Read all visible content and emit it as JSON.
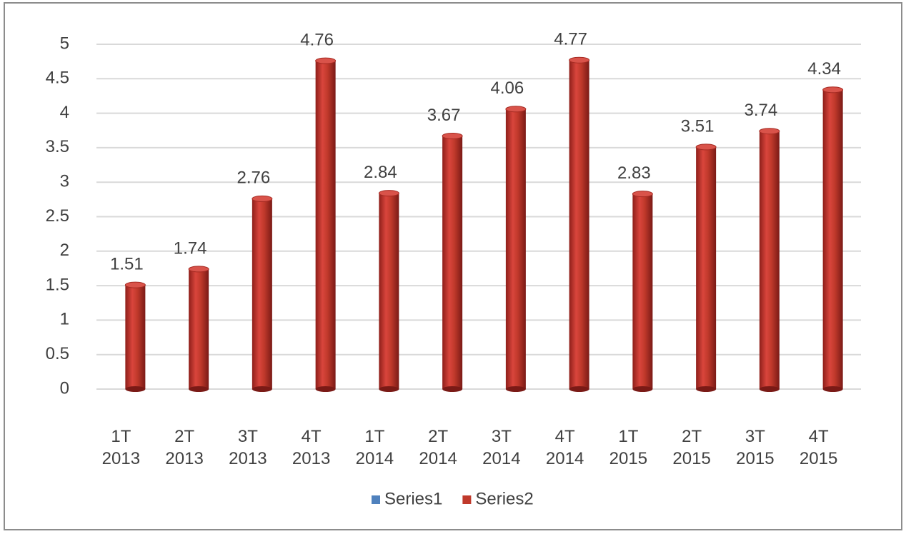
{
  "chart_data": {
    "type": "bar",
    "categories": [
      "1T 2013",
      "2T 2013",
      "3T 2013",
      "4T 2013",
      "1T 2014",
      "2T 2014",
      "3T 2014",
      "4T 2014",
      "1T 2015",
      "2T 2015",
      "3T 2015",
      "4T 2015"
    ],
    "series": [
      {
        "name": "Series1",
        "color": "#4f81bd",
        "values": [
          null,
          null,
          null,
          null,
          null,
          null,
          null,
          null,
          null,
          null,
          null,
          null
        ]
      },
      {
        "name": "Series2",
        "color": "#c0392b",
        "values": [
          1.51,
          1.74,
          2.76,
          4.76,
          2.84,
          3.67,
          4.06,
          4.77,
          2.83,
          3.51,
          3.74,
          4.34
        ]
      }
    ],
    "ylim": [
      0,
      5
    ],
    "yticks": [
      0,
      0.5,
      1,
      1.5,
      2,
      2.5,
      3,
      3.5,
      4,
      4.5,
      5
    ],
    "grid": true,
    "legend": "bottom"
  }
}
